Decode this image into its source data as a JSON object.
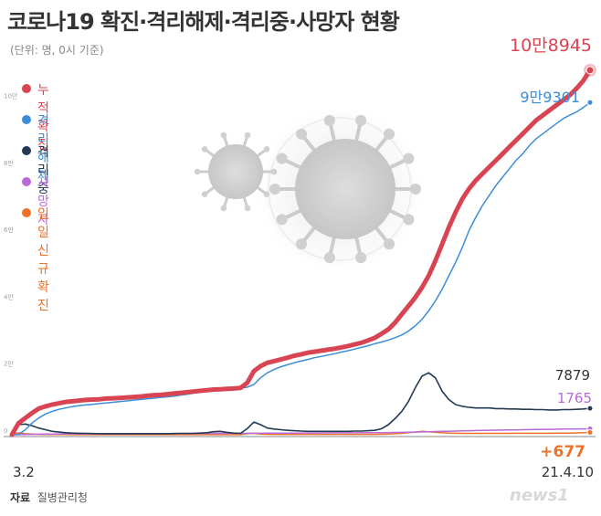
{
  "title": "코로나19 확진·격리해제·격리중·사망자 현황",
  "unit_note": "(단위: 명, 0시 기준)",
  "source_label": "자료",
  "source_value": "질병관리청",
  "logo_text": "news1",
  "chart_data": {
    "type": "line",
    "x_start_label": "3.2",
    "x_end_label": "21.4.10",
    "y_ticks": [
      {
        "value": 0,
        "label": "0"
      },
      {
        "value": 20000,
        "label": "2만"
      },
      {
        "value": 40000,
        "label": "4만"
      },
      {
        "value": 60000,
        "label": "6만"
      },
      {
        "value": 80000,
        "label": "8만"
      },
      {
        "value": 100000,
        "label": "10만"
      }
    ],
    "ylim": [
      0,
      110000
    ],
    "grid": false,
    "legend_position": "top-left",
    "series": [
      {
        "name": "누적확진",
        "color": "#d94452",
        "end_label": "10만8945",
        "end_value": 108945,
        "values": [
          0,
          3500,
          5000,
          6500,
          7800,
          8500,
          9000,
          9400,
          9800,
          10000,
          10200,
          10400,
          10500,
          10600,
          10800,
          10900,
          11000,
          11100,
          11250,
          11400,
          11600,
          11800,
          11900,
          12100,
          12300,
          12500,
          12700,
          12900,
          13100,
          13300,
          13500,
          13600,
          13700,
          13800,
          14000,
          15500,
          19000,
          20500,
          21500,
          22000,
          22500,
          23000,
          23600,
          24000,
          24500,
          24800,
          25100,
          25400,
          25700,
          26100,
          26500,
          27000,
          27500,
          28200,
          29000,
          30200,
          31500,
          33500,
          36000,
          38500,
          41000,
          44000,
          47500,
          52000,
          57000,
          62000,
          66500,
          70500,
          73500,
          76000,
          78000,
          80000,
          82000,
          84000,
          86000,
          88000,
          90000,
          92000,
          94000,
          95500,
          97000,
          98500,
          100000,
          101500,
          103500,
          105800,
          108945
        ]
      },
      {
        "name": "격리해제",
        "color": "#3c8dd8",
        "end_label": "9만9301",
        "end_value": 99301,
        "values": [
          0,
          100,
          1500,
          3500,
          5000,
          6200,
          7000,
          7600,
          8000,
          8400,
          8700,
          8900,
          9100,
          9300,
          9500,
          9700,
          9900,
          10100,
          10300,
          10500,
          10700,
          10900,
          11100,
          11300,
          11500,
          11800,
          12100,
          12400,
          12700,
          12900,
          13100,
          13300,
          13500,
          13700,
          13900,
          14200,
          15000,
          17000,
          18500,
          19500,
          20300,
          20900,
          21500,
          22000,
          22500,
          23000,
          23400,
          23800,
          24200,
          24700,
          25100,
          25600,
          26100,
          26600,
          27200,
          27700,
          28300,
          29000,
          29800,
          31000,
          32500,
          34500,
          37000,
          40000,
          43500,
          47500,
          51500,
          56000,
          61000,
          65000,
          68500,
          71500,
          74500,
          77000,
          79500,
          82000,
          84000,
          86500,
          88500,
          90000,
          91500,
          93000,
          94500,
          95500,
          96500,
          97800,
          99301
        ]
      },
      {
        "name": "격리 중",
        "color": "#233a55",
        "end_label": "7879",
        "end_value": 7879,
        "values": [
          0,
          3000,
          3200,
          2700,
          2000,
          1500,
          1000,
          800,
          600,
          500,
          450,
          400,
          350,
          300,
          300,
          300,
          300,
          300,
          300,
          300,
          300,
          300,
          300,
          300,
          350,
          400,
          400,
          400,
          500,
          600,
          900,
          1000,
          700,
          500,
          400,
          1800,
          3800,
          3000,
          2000,
          1700,
          1500,
          1300,
          1200,
          1100,
          1000,
          1000,
          1000,
          1000,
          1000,
          1000,
          1000,
          1100,
          1100,
          1200,
          1300,
          1800,
          3000,
          4800,
          7000,
          10000,
          14000,
          17500,
          18500,
          17000,
          13000,
          10500,
          9000,
          8500,
          8200,
          8000,
          8000,
          8000,
          7800,
          7800,
          7700,
          7700,
          7600,
          7600,
          7500,
          7500,
          7400,
          7400,
          7500,
          7500,
          7600,
          7700,
          7879
        ]
      },
      {
        "name": "사망자",
        "color": "#b86ad6",
        "end_label": "1765",
        "end_value": 1765,
        "values": [
          0,
          40,
          80,
          120,
          160,
          200,
          230,
          250,
          260,
          270,
          280,
          280,
          280,
          290,
          290,
          300,
          300,
          300,
          310,
          320,
          320,
          320,
          330,
          340,
          350,
          350,
          360,
          370,
          380,
          390,
          400,
          410,
          420,
          420,
          420,
          430,
          440,
          450,
          460,
          470,
          480,
          490,
          500,
          510,
          520,
          530,
          540,
          550,
          560,
          560,
          570,
          580,
          590,
          600,
          620,
          640,
          660,
          690,
          720,
          760,
          800,
          850,
          900,
          950,
          1000,
          1050,
          1100,
          1150,
          1200,
          1250,
          1300,
          1330,
          1360,
          1400,
          1430,
          1460,
          1500,
          1530,
          1560,
          1600,
          1620,
          1650,
          1680,
          1700,
          1720,
          1740,
          1765
        ]
      },
      {
        "name": "일일신규확진",
        "color": "#ee7129",
        "end_label": "+677",
        "end_value": 677,
        "values": [
          0,
          600,
          300,
          200,
          100,
          80,
          60,
          50,
          50,
          40,
          40,
          40,
          40,
          40,
          40,
          40,
          40,
          40,
          40,
          40,
          40,
          40,
          40,
          40,
          40,
          40,
          40,
          40,
          40,
          40,
          40,
          40,
          40,
          40,
          40,
          300,
          400,
          200,
          150,
          100,
          100,
          100,
          100,
          100,
          100,
          100,
          100,
          100,
          100,
          100,
          100,
          100,
          100,
          100,
          100,
          150,
          200,
          300,
          400,
          600,
          800,
          1000,
          900,
          700,
          600,
          500,
          450,
          400,
          400,
          400,
          400,
          400,
          400,
          400,
          400,
          450,
          450,
          450,
          450,
          450,
          450,
          500,
          500,
          500,
          550,
          600,
          677
        ]
      }
    ]
  }
}
